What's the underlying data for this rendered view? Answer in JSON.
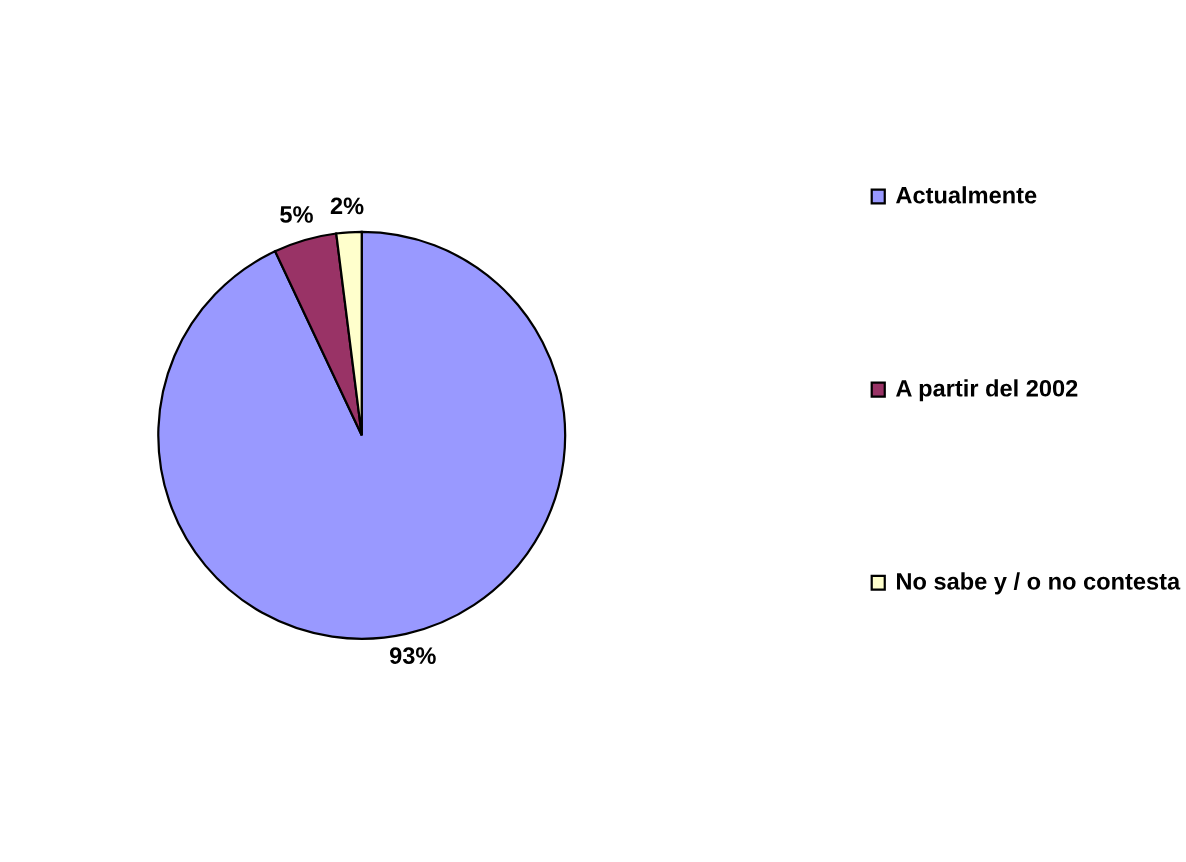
{
  "chart_data": {
    "type": "pie",
    "categories": [
      "Actualmente",
      "A partir del 2002",
      "No sabe y / o no contesta"
    ],
    "values": [
      93,
      5,
      2
    ],
    "colors": [
      "#9999ff",
      "#993366",
      "#ffffcc"
    ],
    "value_labels": [
      "93%",
      "5%",
      "2%"
    ],
    "legend": "right"
  }
}
